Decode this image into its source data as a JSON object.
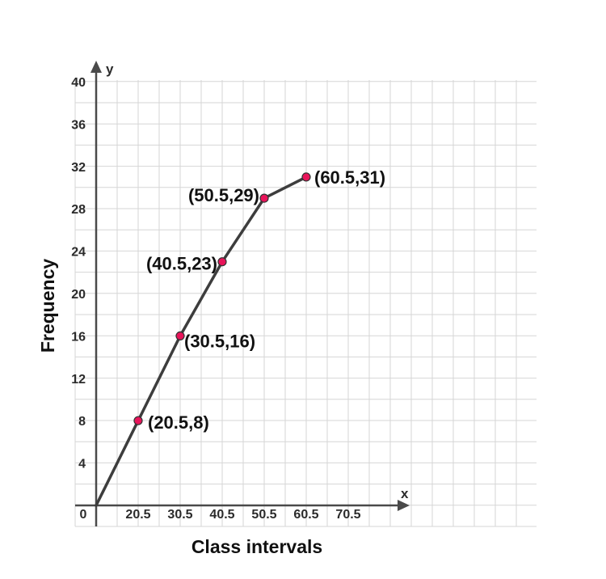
{
  "chart_data": {
    "type": "line",
    "title": "",
    "xlabel": "Class intervals",
    "ylabel": "Frequency",
    "x_axis_letter": "x",
    "y_axis_letter": "y",
    "origin_label": "0",
    "x_tick_labels": [
      "20.5",
      "30.5",
      "40.5",
      "50.5",
      "60.5",
      "70.5"
    ],
    "y_tick_labels": [
      "4",
      "8",
      "12",
      "16",
      "20",
      "24",
      "28",
      "32",
      "36",
      "40"
    ],
    "xlim": [
      10.5,
      80.5
    ],
    "ylim": [
      0,
      40
    ],
    "grid": true,
    "line_start": {
      "x": 10.5,
      "y": 0
    },
    "series": [
      {
        "x": [
          20.5,
          30.5,
          40.5,
          50.5,
          60.5
        ],
        "y": [
          8,
          16,
          23,
          29,
          31
        ]
      }
    ],
    "point_labels": [
      "(20.5,8)",
      "(30.5,16)",
      "(40.5,23)",
      "(50.5,29)",
      "(60.5,31)"
    ],
    "colors": {
      "line": "#3d3d3d",
      "marker": "#e8145a",
      "grid": "#d6d6d6",
      "axis": "#4a4a4a"
    }
  }
}
